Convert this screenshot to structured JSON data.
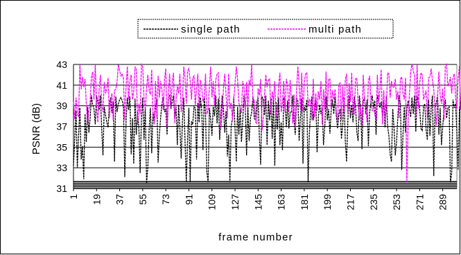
{
  "chart_data": {
    "type": "line",
    "title": "",
    "xlabel": "frame number",
    "ylabel": "PSNR (dB)",
    "ylim": [
      31,
      43
    ],
    "xlim": [
      1,
      300
    ],
    "y_ticks": [
      "31",
      "33",
      "35",
      "37",
      "39",
      "41",
      "43"
    ],
    "x_ticks": [
      "1",
      "19",
      "37",
      "55",
      "73",
      "91",
      "109",
      "127",
      "145",
      "163",
      "181",
      "199",
      "217",
      "235",
      "253",
      "271",
      "289"
    ],
    "grid": "horizontal",
    "legend_position": "top",
    "colors": {
      "single_path": "#000000",
      "multi_path": "#ff00ff"
    },
    "series": [
      {
        "name": "single path",
        "values": [
          33.2,
          35.8,
          38.5,
          33.0,
          36.2,
          38.8,
          33.8,
          35.1,
          31.9,
          38.2,
          35.5,
          38.9,
          36.4,
          37.8,
          40.0,
          39.1,
          38.7,
          37.2,
          40.0,
          39.3,
          38.6,
          40.0,
          36.8,
          34.2,
          38.9,
          38.1,
          37.4,
          36.9,
          39.2,
          39.8,
          38.3,
          39.4,
          33.6,
          39.9,
          38.4,
          39.2,
          39.6,
          39.8,
          39.5,
          38.9,
          32.1,
          37.5,
          39.8,
          38.6,
          39.9,
          34.3,
          37.8,
          33.4,
          39.7,
          36.2,
          38.4,
          36.9,
          32.5,
          37.8,
          39.8,
          35.7,
          38.9,
          31.5,
          33.1,
          36.7,
          38.8,
          34.4,
          38.4,
          37.5,
          38.9,
          39.6,
          33.5,
          36.2,
          37.9,
          39.2,
          39.8,
          38.4,
          38.7,
          36.2,
          39.9,
          40.0,
          38.7,
          39.4,
          40.0,
          37.8,
          38.9,
          35.2,
          39.1,
          36.8,
          33.9,
          37.6,
          39.8,
          35.6,
          31.6,
          35.8,
          38.8,
          31.6,
          37.5,
          37.2,
          38.9,
          38.8,
          33.8,
          39.3,
          37.4,
          39.8,
          38.6,
          34.7,
          39.9,
          38.2,
          32.6,
          31.6,
          38.8,
          37.7,
          36.1,
          38.9,
          38.0,
          40.0,
          37.3,
          39.7,
          35.7,
          37.8,
          40.0,
          38.6,
          36.4,
          38.5,
          34.1,
          36.2,
          31.6,
          37.0,
          37.8,
          39.9,
          36.8,
          33.6,
          38.9,
          36.2,
          38.8,
          35.5,
          37.6,
          40.0,
          38.9,
          34.2,
          38.9,
          35.6,
          37.8,
          38.4,
          39.9,
          37.8,
          37.6,
          39.4,
          39.8,
          35.9,
          33.3,
          39.9,
          39.6,
          38.1,
          40.0,
          35.2,
          39.5,
          37.6,
          39.7,
          35.8,
          39.9,
          33.2,
          39.4,
          36.7,
          39.8,
          35.2,
          37.4,
          34.7,
          39.8,
          39.4,
          36.9,
          39.5,
          36.8,
          38.4,
          38.4,
          40.0,
          37.6,
          36.2,
          39.7,
          39.5,
          35.6,
          37.9,
          39.7,
          33.4,
          38.9,
          38.5,
          39.6,
          31.6,
          36.4,
          38.6,
          39.9,
          37.6,
          38.8,
          39.6,
          34.5,
          37.9,
          39.1,
          38.2,
          38.8,
          35.2,
          37.0,
          39.9,
          37.6,
          38.7,
          36.3,
          38.6,
          39.6,
          38.2,
          39.9,
          38.0,
          36.8,
          38.2,
          38.7,
          35.8,
          37.2,
          39.8,
          35.6,
          33.6,
          37.6,
          40.0,
          37.8,
          39.1,
          37.4,
          39.9,
          38.9,
          36.4,
          35.6,
          40.0,
          38.7,
          34.8,
          39.4,
          39.8,
          38.2,
          39.6,
          35.1,
          38.3,
          39.4,
          40.0,
          38.8,
          39.5,
          36.2,
          40.0,
          39.5,
          38.8,
          39.4,
          38.1,
          39.5,
          36.9,
          39.9,
          37.0,
          36.1,
          34.3,
          33.6,
          38.7,
          36.9,
          34.2,
          35.5,
          38.0,
          40.0,
          39.2,
          32.8,
          36.2,
          38.9,
          36.4,
          38.6,
          39.5,
          38.7,
          37.9,
          39.8,
          38.2,
          40.0,
          36.5,
          39.9,
          39.4,
          38.8,
          36.8,
          36.6,
          38.9,
          39.2,
          36.7,
          35.7,
          39.6,
          36.1,
          38.9,
          40.0,
          32.2,
          38.8,
          39.3,
          40.0,
          36.2,
          38.8,
          35.2,
          37.0,
          38.6,
          39.6,
          37.8,
          38.8,
          38.9,
          31.6,
          32.5,
          39.6,
          38.8,
          39.2,
          36.5,
          32.8,
          38.7,
          39.4,
          38.0,
          35.6,
          39.1,
          33.5
        ]
      },
      {
        "name": "multi path",
        "values": [
          39.4,
          37.7,
          39.8,
          38.3,
          37.9,
          43.0,
          40.6,
          41.8,
          40.8,
          41.6,
          39.2,
          37.2,
          38.5,
          39.4,
          41.8,
          42.3,
          39.6,
          43.0,
          39.0,
          37.4,
          40.5,
          42.0,
          39.4,
          38.4,
          41.3,
          40.2,
          40.6,
          41.7,
          37.8,
          39.5,
          40.2,
          37.6,
          40.5,
          40.6,
          41.3,
          43.0,
          42.4,
          41.9,
          42.1,
          41.6,
          37.6,
          40.8,
          42.8,
          39.6,
          41.4,
          42.0,
          39.6,
          40.4,
          42.8,
          42.5,
          37.2,
          39.2,
          38.2,
          43.0,
          42.8,
          39.8,
          38.6,
          40.7,
          42.0,
          40.5,
          40.1,
          42.5,
          38.1,
          37.2,
          41.4,
          37.8,
          41.9,
          39.8,
          41.4,
          40.6,
          38.6,
          41.5,
          42.6,
          36.9,
          40.2,
          42.1,
          38.8,
          41.2,
          42.2,
          37.3,
          39.6,
          40.9,
          40.2,
          42.1,
          38.4,
          39.4,
          42.8,
          41.7,
          39.2,
          42.4,
          42.6,
          41.5,
          39.6,
          41.7,
          41.9,
          39.0,
          40.7,
          42.1,
          38.6,
          41.5,
          40.8,
          39.4,
          39.8,
          42.1,
          38.2,
          38.6,
          40.9,
          42.8,
          39.8,
          41.4,
          39.0,
          41.5,
          42.1,
          42.2,
          38.9,
          36.8,
          38.2,
          40.7,
          42.1,
          40.1,
          37.8,
          42.1,
          38.7,
          39.3,
          37.6,
          39.6,
          41.2,
          42.8,
          41.5,
          39.3,
          38.8,
          38.3,
          41.4,
          40.8,
          38.4,
          41.3,
          38.8,
          41.5,
          41.0,
          43.0,
          39.2,
          39.6,
          37.4,
          37.3,
          40.7,
          40.0,
          41.6,
          36.6,
          37.8,
          40.0,
          42.0,
          40.8,
          41.5,
          41.6,
          38.2,
          40.4,
          39.5,
          41.4,
          37.9,
          38.7,
          40.9,
          42.2,
          38.4,
          39.3,
          41.4,
          38.4,
          41.6,
          41.0,
          38.4,
          41.5,
          39.5,
          37.3,
          40.1,
          36.8,
          40.6,
          42.8,
          41.1,
          38.6,
          42.2,
          38.4,
          41.2,
          42.1,
          42.2,
          38.9,
          39.6,
          39.4,
          37.6,
          41.6,
          37.9,
          40.2,
          38.5,
          40.4,
          39.6,
          41.4,
          37.2,
          40.6,
          38.6,
          42.3,
          38.5,
          41.6,
          41.6,
          38.7,
          40.5,
          39.6,
          40.6,
          38.4,
          37.5,
          41.1,
          41.2,
          37.6,
          40.9,
          38.4,
          41.5,
          42.1,
          38.2,
          41.2,
          39.4,
          42.2,
          38.2,
          38.2,
          41.6,
          41.7,
          39.3,
          37.6,
          38.9,
          37.1,
          42.0,
          39.6,
          38.9,
          37.4,
          41.4,
          41.9,
          39.6,
          38.5,
          38.8,
          38.2,
          37.6,
          42.0,
          39.3,
          40.6,
          42.5,
          37.2,
          40.5,
          37.6,
          38.8,
          42.2,
          42.1,
          39.8,
          41.4,
          40.8,
          40.8,
          41.6,
          39.6,
          40.4,
          37.8,
          41.6,
          41.8,
          40.2,
          39.6,
          41.7,
          31.6,
          37.3,
          40.1,
          42.3,
          43.0,
          42.4,
          41.9,
          37.9,
          43.0,
          38.7,
          41.2,
          42.2,
          42.0,
          39.6,
          40.0,
          40.5,
          37.8,
          41.7,
          41.8,
          42.6,
          41.4,
          40.6,
          38.6,
          37.1,
          39.9,
          42.3,
          40.0,
          39.2,
          40.7,
          37.6,
          42.8,
          43.0,
          40.9,
          41.2,
          41.8,
          40.2,
          41.7,
          42.1,
          39.8,
          38.7,
          41.5,
          42.8,
          38.6,
          41.4,
          42.6,
          37.6,
          39.2,
          40.2,
          39.4,
          40.5,
          37.6
        ]
      }
    ]
  }
}
